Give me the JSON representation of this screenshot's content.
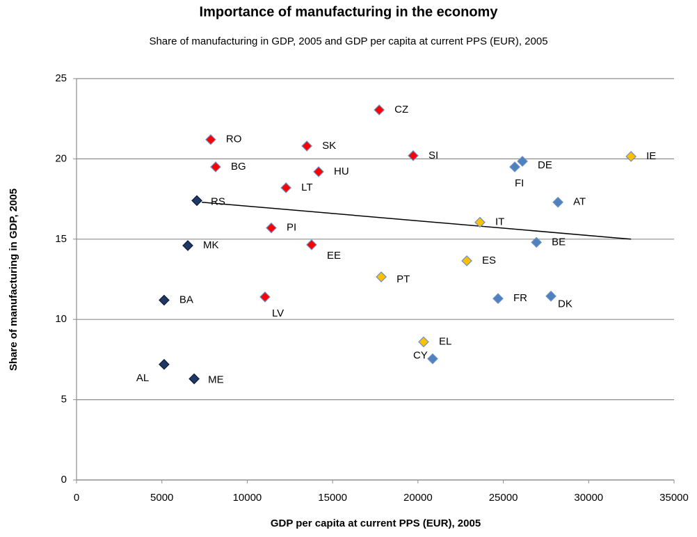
{
  "chart_data": {
    "type": "scatter",
    "title": "Importance of manufacturing in the economy",
    "subtitle": "Share of manufacturing in GDP, 2005 and GDP per capita at current PPS (EUR), 2005",
    "x_label": "GDP per capita at current PPS (EUR), 2005",
    "y_label": "Share of manufacturing  in GDP, 2005",
    "xlim": [
      0,
      35000
    ],
    "xticks": [
      0,
      5000,
      10000,
      15000,
      20000,
      25000,
      30000,
      35000
    ],
    "ylim": [
      0,
      25
    ],
    "yticks": [
      0,
      5,
      10,
      15,
      20,
      25
    ],
    "grid": true,
    "series": [
      {
        "color": "#1f3864",
        "labels": [
          "RS",
          "MK",
          "BA",
          "AL",
          "ME"
        ],
        "x": [
          7050,
          6520,
          5130,
          5130,
          6890
        ],
        "values": [
          17.4,
          14.6,
          11.2,
          7.2,
          6.3
        ]
      },
      {
        "color": "#ff0000",
        "labels": [
          "RO",
          "BG",
          "SK",
          "CZ",
          "SI",
          "HU",
          "LT",
          "PI",
          "EE",
          "LV"
        ],
        "x": [
          7860,
          8150,
          13490,
          17730,
          19720,
          14180,
          12270,
          11410,
          13770,
          11040
        ],
        "values": [
          21.2,
          19.5,
          20.8,
          23.05,
          20.2,
          19.2,
          18.2,
          15.7,
          14.65,
          11.4
        ]
      },
      {
        "color": "#4f81bd",
        "labels": [
          "DE",
          "FI",
          "AT",
          "BE",
          "FR",
          "DK",
          "CY"
        ],
        "x": [
          26120,
          25670,
          28200,
          26940,
          24690,
          27790,
          20860
        ],
        "values": [
          19.85,
          19.5,
          17.3,
          14.8,
          11.3,
          11.45,
          7.55
        ]
      },
      {
        "color": "#ffc000",
        "labels": [
          "IE",
          "IT",
          "ES",
          "PT",
          "EL"
        ],
        "x": [
          32480,
          23630,
          22860,
          17850,
          20330
        ],
        "values": [
          20.15,
          16.05,
          13.65,
          12.65,
          8.6
        ]
      }
    ],
    "trendline": {
      "color": "#000000",
      "x": [
        7340,
        32480
      ],
      "values": [
        17.3,
        15.0
      ]
    }
  }
}
